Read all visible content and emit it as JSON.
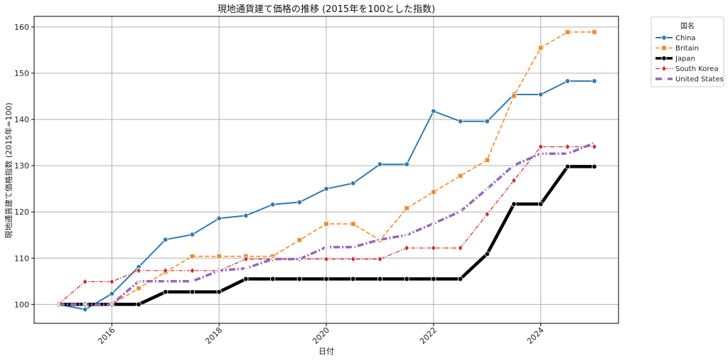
{
  "chart_data": {
    "type": "line",
    "title": "現地通貨建て価格の推移 (2015年を100とした指数)",
    "xlabel": "日付",
    "ylabel": "現地通貨建て価格指数 (2015年=100)",
    "x_ticks": [
      "2016",
      "2018",
      "2020",
      "2022",
      "2024"
    ],
    "y_ticks": [
      100,
      110,
      120,
      130,
      140,
      150,
      160
    ],
    "xlim": [
      2014.55,
      2025.45
    ],
    "ylim": [
      95.9,
      162.3
    ],
    "grid": true,
    "legend": {
      "title": "国名",
      "position": "outside-top-right"
    },
    "x": [
      2015.0,
      2015.5,
      2016.0,
      2016.5,
      2017.0,
      2017.5,
      2018.0,
      2018.5,
      2019.0,
      2019.5,
      2020.0,
      2020.5,
      2021.0,
      2021.5,
      2022.0,
      2022.5,
      2023.0,
      2023.5,
      2024.0,
      2024.5,
      2025.0
    ],
    "series": [
      {
        "name": "China",
        "color": "#2e7bb4",
        "dash": "",
        "width": 2,
        "marker": "circle",
        "values": [
          100,
          98.9,
          102.3,
          108.1,
          114.0,
          115.1,
          118.6,
          119.2,
          121.6,
          122.1,
          125.0,
          126.2,
          130.3,
          130.3,
          141.8,
          139.6,
          139.6,
          145.4,
          145.4,
          148.3,
          148.3
        ]
      },
      {
        "name": "Britain",
        "color": "#f28c28",
        "dash": "6,3",
        "width": 1.6,
        "marker": "square",
        "values": [
          100,
          100,
          100,
          103.5,
          107.0,
          110.4,
          110.4,
          110.4,
          110.4,
          113.9,
          117.4,
          117.4,
          113.9,
          120.8,
          124.3,
          127.8,
          131.2,
          145.1,
          155.5,
          158.9,
          158.9
        ]
      },
      {
        "name": "Japan",
        "color": "#000000",
        "dash": "",
        "width": 4.5,
        "marker": "circle",
        "values": [
          100,
          100,
          100,
          100,
          102.7,
          102.7,
          102.7,
          105.5,
          105.5,
          105.5,
          105.5,
          105.5,
          105.5,
          105.5,
          105.5,
          105.5,
          110.9,
          121.7,
          121.7,
          129.8,
          129.8
        ]
      },
      {
        "name": "South Korea",
        "color": "#d62728",
        "dash": "6,2,1.5,2",
        "width": 1.2,
        "marker": "diamond",
        "values": [
          100,
          104.9,
          104.9,
          107.3,
          107.3,
          107.3,
          107.3,
          109.8,
          109.8,
          109.8,
          109.8,
          109.8,
          109.8,
          112.2,
          112.2,
          112.2,
          119.5,
          126.8,
          134.1,
          134.1,
          134.1
        ]
      },
      {
        "name": "United States",
        "color": "#9467bd",
        "dash": "9,3,2,3",
        "width": 3.5,
        "marker": "x",
        "values": [
          100,
          100,
          100,
          105.0,
          105.0,
          105.0,
          107.3,
          107.8,
          109.8,
          109.8,
          112.4,
          112.4,
          114.0,
          115.0,
          117.5,
          120.1,
          125.0,
          130.1,
          132.6,
          132.6,
          134.9
        ]
      }
    ]
  }
}
